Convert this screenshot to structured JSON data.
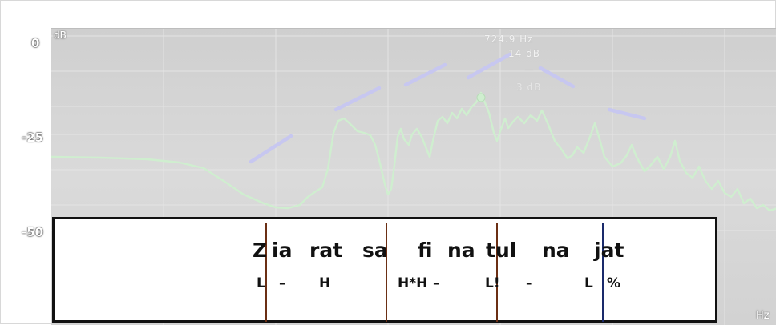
{
  "spectrum": {
    "y_labels": [
      "0",
      "-25",
      "-50"
    ],
    "y_unit": "dB",
    "x_unit": "Hz",
    "readout": {
      "freq": "724.9 Hz",
      "level": "14 dB",
      "extra_1": "—",
      "extra_2": "3 dB"
    },
    "colors": {
      "curve": "#cfeecf",
      "pitch_marks": "#c7c7f0",
      "background": "#d6d6d6"
    }
  },
  "annotation": {
    "syllables": [
      "Z",
      "ia",
      "rat",
      "sa",
      "fi",
      "na",
      "tul",
      "na",
      "jat"
    ],
    "tones": [
      "L",
      "–",
      "H",
      "H*H",
      "–",
      "L!",
      "–",
      "L",
      "%"
    ],
    "colors": {
      "boundary": "#6b2f14",
      "final_boundary": "#1a2a6b"
    }
  }
}
